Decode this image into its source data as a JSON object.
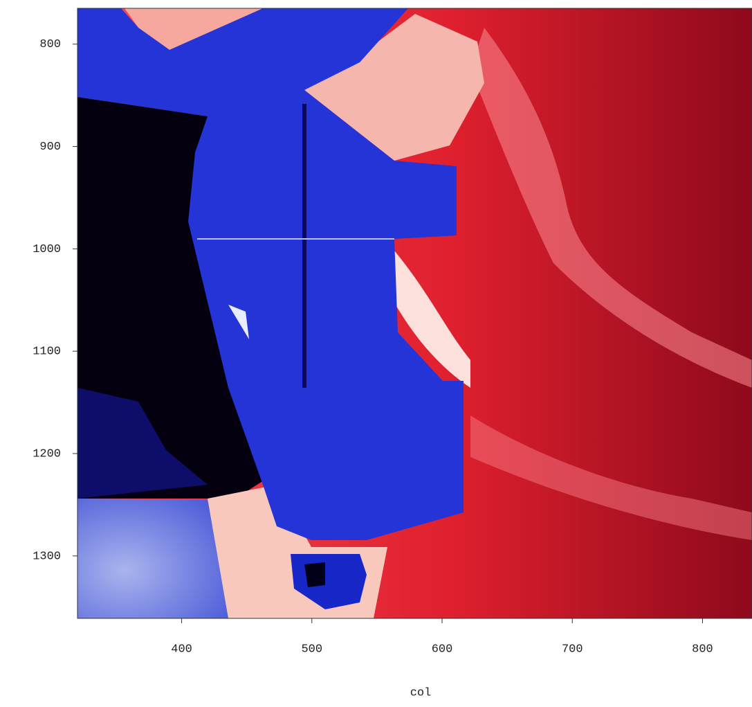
{
  "chart_data": {
    "type": "image",
    "xlabel": "col",
    "xlim": [
      320,
      838
    ],
    "xticks": [
      400,
      500,
      600,
      700,
      800
    ],
    "ylim": [
      1361,
      765
    ],
    "yticks": [
      800,
      900,
      1000,
      1100,
      1200,
      1300
    ]
  }
}
